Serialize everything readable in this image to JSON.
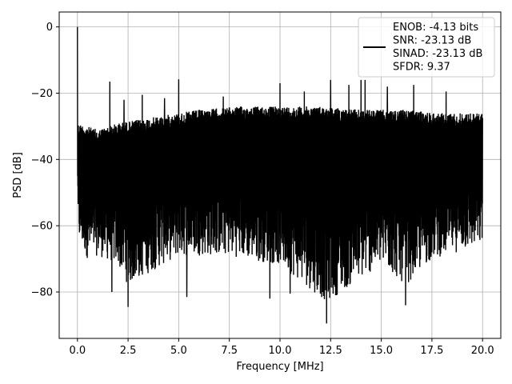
{
  "chart_data": {
    "type": "line",
    "title": "",
    "xlabel": "Frequency [MHz]",
    "ylabel": "PSD [dB]",
    "xlim": [
      -0.9,
      20.9
    ],
    "ylim": [
      -94,
      4.5
    ],
    "x_ticks": [
      0.0,
      2.5,
      5.0,
      7.5,
      10.0,
      12.5,
      15.0,
      17.5,
      20.0
    ],
    "x_tick_labels": [
      "0.0",
      "2.5",
      "5.0",
      "7.5",
      "10.0",
      "12.5",
      "15.0",
      "17.5",
      "20.0"
    ],
    "y_ticks": [
      0,
      -20,
      -40,
      -60,
      -80
    ],
    "y_tick_labels": [
      "0",
      "−20",
      "−40",
      "−60",
      "−80"
    ],
    "grid": true,
    "legend_position": "top-right",
    "series": [
      {
        "name": "",
        "color": "#000000",
        "x_range": [
          0,
          20
        ],
        "description_values": {
          "dc_peak_db": 0,
          "upper_envelope_db": [
            [
              0.0,
              -28
            ],
            [
              0.5,
              -29
            ],
            [
              1.0,
              -30
            ],
            [
              2.0,
              -28
            ],
            [
              3.0,
              -27
            ],
            [
              4.0,
              -26
            ],
            [
              5.0,
              -25
            ],
            [
              6.0,
              -24
            ],
            [
              8.0,
              -23
            ],
            [
              10.0,
              -23
            ],
            [
              12.0,
              -23
            ],
            [
              14.0,
              -24
            ],
            [
              16.0,
              -24
            ],
            [
              18.0,
              -25
            ],
            [
              20.0,
              -25
            ]
          ],
          "lower_envelope_db": [
            [
              0.0,
              -70
            ],
            [
              0.5,
              -76
            ],
            [
              1.0,
              -75
            ],
            [
              2.0,
              -78
            ],
            [
              2.5,
              -84
            ],
            [
              5.0,
              -75
            ],
            [
              7.5,
              -75
            ],
            [
              10.0,
              -78
            ],
            [
              12.3,
              -89
            ],
            [
              15.0,
              -78
            ],
            [
              16.2,
              -84
            ],
            [
              17.5,
              -76
            ],
            [
              20.0,
              -72
            ]
          ],
          "spurs_db": [
            [
              1.6,
              -16.5
            ],
            [
              5.0,
              -15.8
            ],
            [
              10.0,
              -17
            ],
            [
              12.5,
              -16
            ],
            [
              13.4,
              -17.5
            ],
            [
              14.0,
              -16
            ],
            [
              14.2,
              -16
            ],
            [
              15.3,
              -18
            ],
            [
              16.6,
              -17.5
            ],
            [
              18.2,
              -19.5
            ],
            [
              2.3,
              -22
            ],
            [
              3.2,
              -20.5
            ],
            [
              4.3,
              -21.5
            ],
            [
              7.2,
              -21
            ],
            [
              11.2,
              -19.5
            ]
          ],
          "deep_nulls_db": [
            [
              1.7,
              -80
            ],
            [
              2.5,
              -84.5
            ],
            [
              5.4,
              -81.5
            ],
            [
              9.5,
              -82
            ],
            [
              10.5,
              -80.5
            ],
            [
              12.3,
              -89.5
            ],
            [
              16.2,
              -84
            ],
            [
              12.1,
              -80
            ]
          ]
        }
      }
    ],
    "legend_entries": [
      "ENOB: -4.13 bits",
      "SNR: -23.13 dB",
      "SINAD: -23.13 dB",
      "SFDR: 9.37"
    ]
  }
}
